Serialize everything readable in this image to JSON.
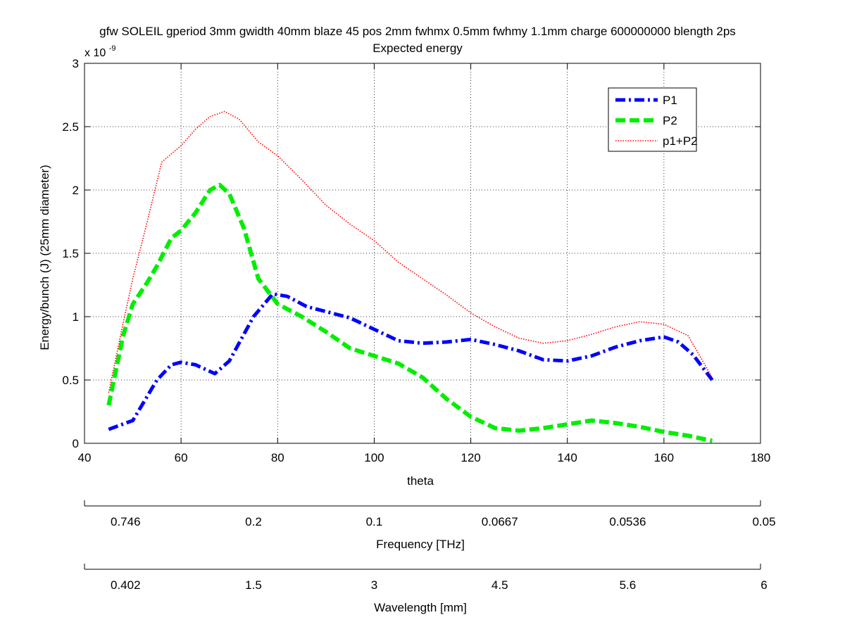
{
  "chart_data": {
    "type": "line",
    "title": "gfw SOLEIL gperiod 3mm gwidth 40mm blaze 45 pos 2mm fwhmx 0.5mm fwhmy 1.1mm charge 600000000 blength 2ps",
    "subtitle": "Expected energy",
    "xlabel": "theta",
    "ylabel": "Energy/bunch (J) (25mm diameter)",
    "y_exponent_label": "x 10",
    "y_exponent_power": "-9",
    "xlim": [
      40,
      180
    ],
    "ylim": [
      0,
      3
    ],
    "x_ticks": [
      "40",
      "60",
      "80",
      "100",
      "120",
      "140",
      "160",
      "180"
    ],
    "y_ticks": [
      "0",
      "0.5",
      "1",
      "1.5",
      "2",
      "2.5",
      "3"
    ],
    "grid": true,
    "legend_position": "top-right",
    "series": [
      {
        "name": "P1",
        "color": "#0000ff",
        "style": "dash-dot",
        "points": [
          [
            45,
            0.11
          ],
          [
            50,
            0.18
          ],
          [
            55,
            0.5
          ],
          [
            58,
            0.62
          ],
          [
            60,
            0.64
          ],
          [
            63,
            0.62
          ],
          [
            67,
            0.55
          ],
          [
            70,
            0.65
          ],
          [
            75,
            1.0
          ],
          [
            79,
            1.18
          ],
          [
            82,
            1.16
          ],
          [
            86,
            1.08
          ],
          [
            90,
            1.04
          ],
          [
            95,
            0.99
          ],
          [
            100,
            0.9
          ],
          [
            105,
            0.81
          ],
          [
            110,
            0.79
          ],
          [
            115,
            0.8
          ],
          [
            120,
            0.82
          ],
          [
            125,
            0.78
          ],
          [
            130,
            0.73
          ],
          [
            135,
            0.66
          ],
          [
            140,
            0.65
          ],
          [
            145,
            0.69
          ],
          [
            150,
            0.76
          ],
          [
            155,
            0.81
          ],
          [
            160,
            0.84
          ],
          [
            163,
            0.8
          ],
          [
            166,
            0.7
          ],
          [
            170,
            0.5
          ]
        ]
      },
      {
        "name": "P2",
        "color": "#00ee00",
        "style": "dashed",
        "points": [
          [
            45,
            0.3
          ],
          [
            48,
            0.85
          ],
          [
            50,
            1.1
          ],
          [
            53,
            1.27
          ],
          [
            55,
            1.4
          ],
          [
            58,
            1.62
          ],
          [
            60,
            1.68
          ],
          [
            63,
            1.82
          ],
          [
            66,
            2.0
          ],
          [
            68,
            2.04
          ],
          [
            70,
            1.97
          ],
          [
            73,
            1.7
          ],
          [
            76,
            1.3
          ],
          [
            80,
            1.1
          ],
          [
            85,
            1.0
          ],
          [
            90,
            0.88
          ],
          [
            95,
            0.75
          ],
          [
            100,
            0.69
          ],
          [
            105,
            0.63
          ],
          [
            110,
            0.52
          ],
          [
            115,
            0.35
          ],
          [
            120,
            0.21
          ],
          [
            125,
            0.12
          ],
          [
            130,
            0.1
          ],
          [
            135,
            0.12
          ],
          [
            140,
            0.15
          ],
          [
            145,
            0.18
          ],
          [
            150,
            0.16
          ],
          [
            155,
            0.13
          ],
          [
            160,
            0.09
          ],
          [
            165,
            0.06
          ],
          [
            170,
            0.02
          ]
        ]
      },
      {
        "name": "p1+P2",
        "color": "#ff0000",
        "style": "dotted",
        "points": [
          [
            45,
            0.4
          ],
          [
            48,
            0.95
          ],
          [
            50,
            1.3
          ],
          [
            53,
            1.75
          ],
          [
            56,
            2.22
          ],
          [
            60,
            2.35
          ],
          [
            63,
            2.48
          ],
          [
            66,
            2.58
          ],
          [
            69,
            2.62
          ],
          [
            72,
            2.56
          ],
          [
            76,
            2.38
          ],
          [
            80,
            2.27
          ],
          [
            85,
            2.08
          ],
          [
            90,
            1.88
          ],
          [
            95,
            1.73
          ],
          [
            100,
            1.6
          ],
          [
            105,
            1.43
          ],
          [
            110,
            1.3
          ],
          [
            115,
            1.17
          ],
          [
            120,
            1.03
          ],
          [
            125,
            0.92
          ],
          [
            130,
            0.83
          ],
          [
            135,
            0.79
          ],
          [
            140,
            0.81
          ],
          [
            145,
            0.86
          ],
          [
            150,
            0.92
          ],
          [
            155,
            0.96
          ],
          [
            160,
            0.94
          ],
          [
            165,
            0.85
          ],
          [
            170,
            0.52
          ]
        ]
      }
    ],
    "secondary_axes": [
      {
        "label": "Frequency [THz]",
        "ticks": [
          {
            "theta": 48.5,
            "label": "0.746"
          },
          {
            "theta": 75,
            "label": "0.2"
          },
          {
            "theta": 100,
            "label": "0.1"
          },
          {
            "theta": 126,
            "label": "0.0667"
          },
          {
            "theta": 152.5,
            "label": "0.0536"
          },
          {
            "theta": 180,
            "label": "0.05"
          }
        ],
        "edge_ticks": [
          40,
          180
        ]
      },
      {
        "label": "Wavelength [mm]",
        "ticks": [
          {
            "theta": 48.5,
            "label": "0.402"
          },
          {
            "theta": 75,
            "label": "1.5"
          },
          {
            "theta": 100,
            "label": "3"
          },
          {
            "theta": 126,
            "label": "4.5"
          },
          {
            "theta": 152.5,
            "label": "5.6"
          },
          {
            "theta": 180,
            "label": "6"
          }
        ],
        "edge_ticks": [
          40,
          180
        ]
      }
    ]
  }
}
